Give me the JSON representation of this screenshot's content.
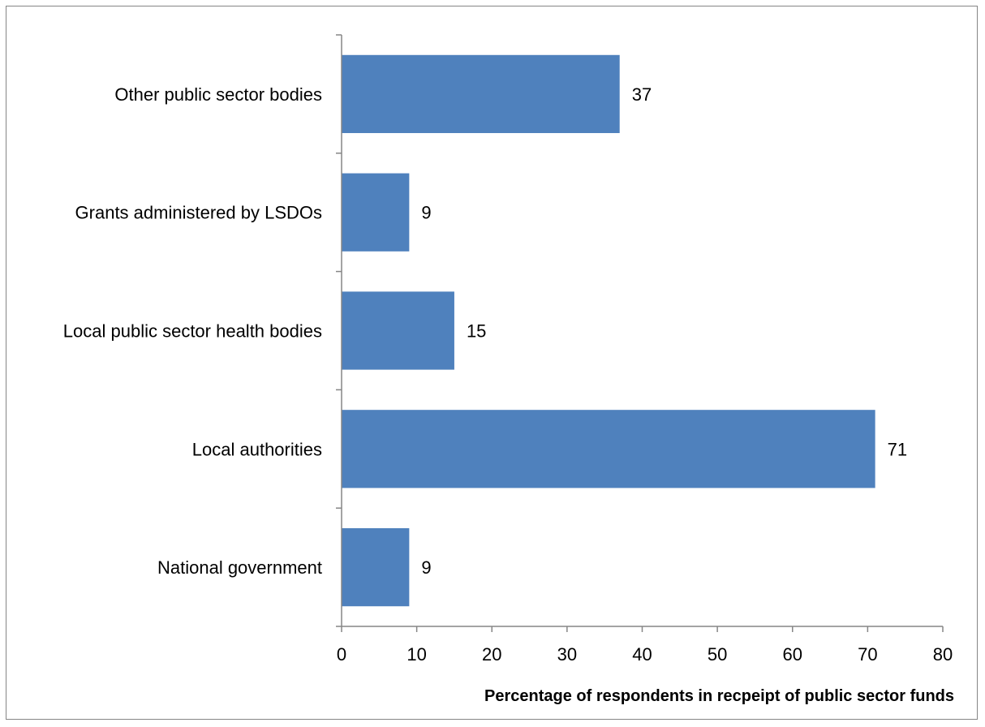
{
  "chart_data": {
    "type": "bar",
    "orientation": "horizontal",
    "categories": [
      "National government",
      "Local authorities",
      "Local public sector health bodies",
      "Grants administered by LSDOs",
      "Other public sector bodies"
    ],
    "values": [
      9,
      71,
      15,
      9,
      37
    ],
    "data_labels": [
      "9",
      "71",
      "15",
      "9",
      "37"
    ],
    "xlabel": "Percentage of respondents in recpeipt of public sector funds",
    "ylabel": "",
    "xlim": [
      0,
      80
    ],
    "xticks": [
      0,
      10,
      20,
      30,
      40,
      50,
      60,
      70,
      80
    ],
    "xtick_labels": [
      "0",
      "10",
      "20",
      "30",
      "40",
      "50",
      "60",
      "70",
      "80"
    ],
    "grid": false,
    "legend": "none",
    "bar_color": "#4F81BD"
  }
}
